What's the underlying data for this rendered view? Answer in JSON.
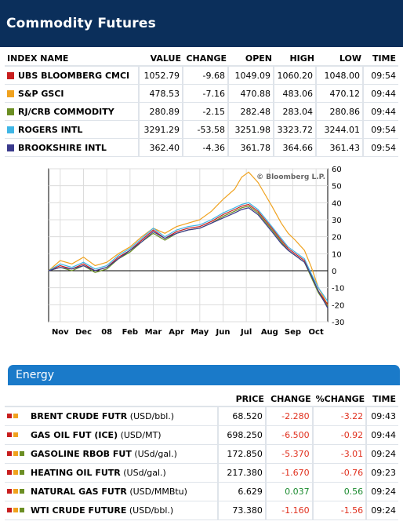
{
  "header": {
    "title": "Commodity Futures"
  },
  "index_table": {
    "columns": [
      "INDEX NAME",
      "VALUE",
      "CHANGE",
      "OPEN",
      "HIGH",
      "LOW",
      "TIME"
    ],
    "rows": [
      {
        "name": "UBS BLOOMBERG CMCI",
        "color": "#c81e1e",
        "value": "1052.79",
        "change": "-9.68",
        "open": "1049.09",
        "high": "1060.20",
        "low": "1048.00",
        "time": "09:54"
      },
      {
        "name": "S&P GSCI",
        "color": "#f0a21e",
        "value": "478.53",
        "change": "-7.16",
        "open": "470.88",
        "high": "483.06",
        "low": "470.12",
        "time": "09:44"
      },
      {
        "name": "RJ/CRB COMMODITY",
        "color": "#6b8e23",
        "value": "280.89",
        "change": "-2.15",
        "open": "282.48",
        "high": "283.04",
        "low": "280.86",
        "time": "09:44"
      },
      {
        "name": "ROGERS INTL",
        "color": "#3fb6e6",
        "value": "3291.29",
        "change": "-53.58",
        "open": "3251.98",
        "high": "3323.72",
        "low": "3244.01",
        "time": "09:54"
      },
      {
        "name": "BROOKSHIRE INTL",
        "color": "#3a3a8c",
        "value": "362.40",
        "change": "-4.36",
        "open": "361.78",
        "high": "364.66",
        "low": "361.43",
        "time": "09:54"
      }
    ]
  },
  "chart_data": {
    "type": "line",
    "title": "",
    "watermark": "© Bloomberg L.P.",
    "xlabel": "",
    "ylabel": "",
    "x_ticks": [
      "Nov",
      "Dec",
      "08",
      "Feb",
      "Mar",
      "Apr",
      "May",
      "Jun",
      "Jul",
      "Aug",
      "Sep",
      "Oct"
    ],
    "x_range": [
      0,
      12
    ],
    "y_ticks": [
      60,
      50,
      40,
      30,
      20,
      10,
      0,
      -10,
      -20,
      -30
    ],
    "ylim": [
      -30,
      60
    ],
    "grid": true,
    "zero_line": true,
    "series": [
      {
        "color": "#f0a21e",
        "x": [
          0,
          0.5,
          1,
          1.5,
          2,
          2.5,
          3,
          3.5,
          4,
          4.5,
          5,
          5.5,
          6,
          6.5,
          7,
          7.5,
          8,
          8.3,
          8.6,
          9,
          9.3,
          9.6,
          10,
          10.3,
          10.6,
          11,
          11.3,
          11.6,
          12
        ],
        "y": [
          0,
          6,
          4,
          8,
          3,
          5,
          10,
          14,
          20,
          25,
          22,
          26,
          28,
          30,
          35,
          42,
          48,
          55,
          58,
          52,
          45,
          38,
          28,
          22,
          18,
          12,
          2,
          -10,
          -20
        ]
      },
      {
        "color": "#c81e1e",
        "x": [
          0,
          0.5,
          1,
          1.5,
          2,
          2.5,
          3,
          3.5,
          4,
          4.5,
          5,
          5.5,
          6,
          6.5,
          7,
          7.5,
          8,
          8.3,
          8.6,
          9,
          9.3,
          9.6,
          10,
          10.3,
          10.6,
          11,
          11.3,
          11.6,
          12
        ],
        "y": [
          0,
          3,
          1,
          4,
          0,
          2,
          8,
          12,
          18,
          24,
          19,
          23,
          25,
          26,
          29,
          33,
          36,
          38,
          39,
          35,
          30,
          25,
          18,
          13,
          10,
          6,
          -3,
          -12,
          -20
        ]
      },
      {
        "color": "#3fb6e6",
        "x": [
          0,
          0.5,
          1,
          1.5,
          2,
          2.5,
          3,
          3.5,
          4,
          4.5,
          5,
          5.5,
          6,
          6.5,
          7,
          7.5,
          8,
          8.3,
          8.6,
          9,
          9.3,
          9.6,
          10,
          10.3,
          10.6,
          11,
          11.3,
          11.6,
          12
        ],
        "y": [
          0,
          4,
          2,
          5,
          1,
          3,
          9,
          13,
          19,
          25,
          20,
          24,
          26,
          27,
          30,
          34,
          37,
          39,
          40,
          36,
          31,
          26,
          19,
          14,
          11,
          7,
          -2,
          -10,
          -18
        ]
      },
      {
        "color": "#6b8e23",
        "x": [
          0,
          0.5,
          1,
          1.5,
          2,
          2.5,
          3,
          3.5,
          4,
          4.5,
          5,
          5.5,
          6,
          6.5,
          7,
          7.5,
          8,
          8.3,
          8.6,
          9,
          9.3,
          9.6,
          10,
          10.3,
          10.6,
          11,
          11.3,
          11.6,
          12
        ],
        "y": [
          0,
          2,
          0,
          3,
          -1,
          1,
          7,
          11,
          17,
          22,
          18,
          22,
          24,
          25,
          28,
          32,
          35,
          37,
          38,
          34,
          29,
          24,
          17,
          12,
          9,
          5,
          -4,
          -13,
          -21
        ]
      },
      {
        "color": "#3a3a8c",
        "x": [
          0,
          0.5,
          1,
          1.5,
          2,
          2.5,
          3,
          3.5,
          4,
          4.5,
          5,
          5.5,
          6,
          6.5,
          7,
          7.5,
          8,
          8.3,
          8.6,
          9,
          9.3,
          9.6,
          10,
          10.3,
          10.6,
          11,
          11.3,
          11.6,
          12
        ],
        "y": [
          0,
          2,
          1,
          3,
          0,
          2,
          7,
          12,
          17,
          23,
          19,
          22,
          24,
          25,
          28,
          31,
          34,
          36,
          37,
          33,
          28,
          23,
          16,
          12,
          9,
          5,
          -3,
          -12,
          -22
        ]
      }
    ]
  },
  "energy": {
    "section_label": "Energy",
    "columns": [
      "PRICE",
      "CHANGE",
      "%CHANGE",
      "TIME"
    ],
    "rows": [
      {
        "name": "BRENT CRUDE FUTR",
        "unit": "(USD/bbl.)",
        "price": "68.520",
        "change": "-2.280",
        "pct": "-3.22",
        "time": "09:43",
        "icons": [
          "#c81e1e",
          "#f0a21e"
        ]
      },
      {
        "name": "GAS OIL FUT (ICE)",
        "unit": "(USD/MT)",
        "price": "698.250",
        "change": "-6.500",
        "pct": "-0.92",
        "time": "09:44",
        "icons": [
          "#c81e1e",
          "#f0a21e"
        ]
      },
      {
        "name": "GASOLINE RBOB FUT",
        "unit": "(USd/gal.)",
        "price": "172.850",
        "change": "-5.370",
        "pct": "-3.01",
        "time": "09:24",
        "icons": [
          "#c81e1e",
          "#f0a21e",
          "#6b8e23"
        ]
      },
      {
        "name": "HEATING OIL FUTR",
        "unit": "(USd/gal.)",
        "price": "217.380",
        "change": "-1.670",
        "pct": "-0.76",
        "time": "09:23",
        "icons": [
          "#c81e1e",
          "#f0a21e",
          "#6b8e23"
        ]
      },
      {
        "name": "NATURAL GAS FUTR",
        "unit": "(USD/MMBtu)",
        "price": "6.629",
        "change": "0.037",
        "pct": "0.56",
        "time": "09:24",
        "icons": [
          "#c81e1e",
          "#f0a21e",
          "#6b8e23"
        ]
      },
      {
        "name": "WTI CRUDE FUTURE",
        "unit": "(USD/bbl.)",
        "price": "73.380",
        "change": "-1.160",
        "pct": "-1.56",
        "time": "09:24",
        "icons": [
          "#c81e1e",
          "#f0a21e",
          "#6b8e23"
        ]
      }
    ]
  }
}
